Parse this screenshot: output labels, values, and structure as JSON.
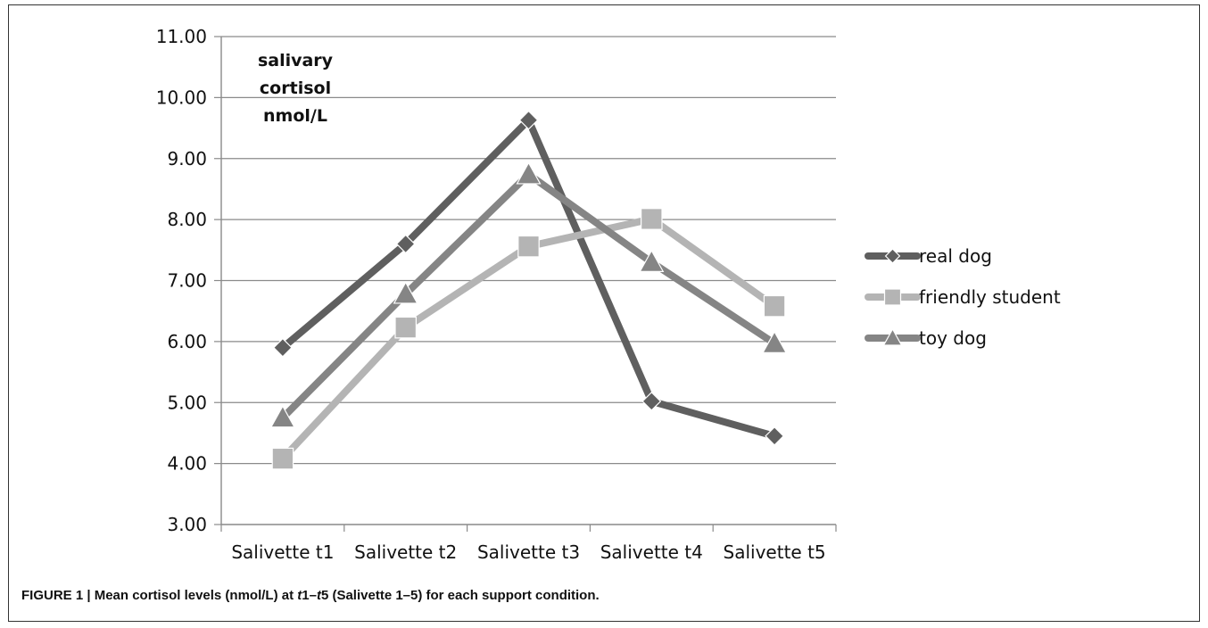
{
  "figure": {
    "caption_prefix": "FIGURE 1 | Mean cortisol levels (nmol/L) at ",
    "caption_t1": "t",
    "caption_mid": "1–",
    "caption_t5": "t",
    "caption_suffix": "5 (Salivette 1–5) for each support condition."
  },
  "chart_data": {
    "type": "line",
    "title": "",
    "xlabel": "",
    "ylabel_lines": [
      "salivary",
      "cortisol",
      "nmol/L"
    ],
    "categories": [
      "Salivette t1",
      "Salivette t2",
      "Salivette t3",
      "Salivette t4",
      "Salivette t5"
    ],
    "ylim": [
      3,
      11
    ],
    "yticks": [
      "3.00",
      "4.00",
      "5.00",
      "6.00",
      "7.00",
      "8.00",
      "9.00",
      "10.00",
      "11.00"
    ],
    "grid": true,
    "legend_position": "right",
    "series": [
      {
        "name": "real dog",
        "marker": "diamond",
        "color": "#5f5f5f",
        "values": [
          5.9,
          7.6,
          9.63,
          5.02,
          4.45
        ]
      },
      {
        "name": "friendly student",
        "marker": "square",
        "color": "#b4b4b4",
        "values": [
          4.08,
          6.23,
          7.56,
          8.01,
          6.58
        ]
      },
      {
        "name": "toy dog",
        "marker": "triangle",
        "color": "#858585",
        "values": [
          4.75,
          6.78,
          8.74,
          7.3,
          5.97
        ]
      }
    ]
  }
}
